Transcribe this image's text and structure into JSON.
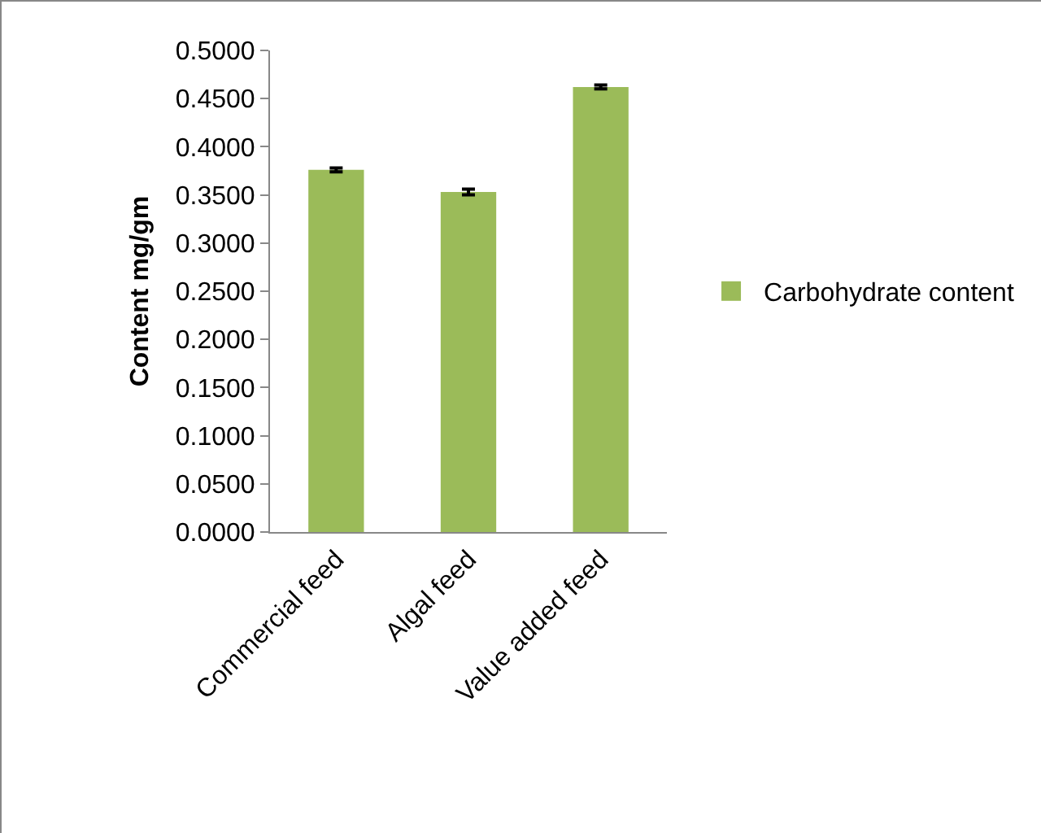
{
  "chart_data": {
    "type": "bar",
    "ylabel": "Content mg/gm",
    "categories": [
      "Commercial feed",
      "Algal feed",
      "Value added feed"
    ],
    "series": [
      {
        "name": "Carbohydrate content",
        "color": "#9bbb59",
        "values": [
          0.376,
          0.353,
          0.462
        ],
        "errors": [
          0.002,
          0.003,
          0.002
        ]
      }
    ],
    "ylim": [
      0,
      0.5
    ],
    "yticks": [
      {
        "value": 0,
        "label": "0.0000"
      },
      {
        "value": 0.05,
        "label": "0.0500"
      },
      {
        "value": 0.1,
        "label": "0.1000"
      },
      {
        "value": 0.15,
        "label": "0.1500"
      },
      {
        "value": 0.2,
        "label": "0.2000"
      },
      {
        "value": 0.25,
        "label": "0.2500"
      },
      {
        "value": 0.3,
        "label": "0.3000"
      },
      {
        "value": 0.35,
        "label": "0.3500"
      },
      {
        "value": 0.4,
        "label": "0.4000"
      },
      {
        "value": 0.45,
        "label": "0.4500"
      },
      {
        "value": 0.5,
        "label": "0.5000"
      }
    ],
    "grid": false,
    "legend": "right"
  }
}
